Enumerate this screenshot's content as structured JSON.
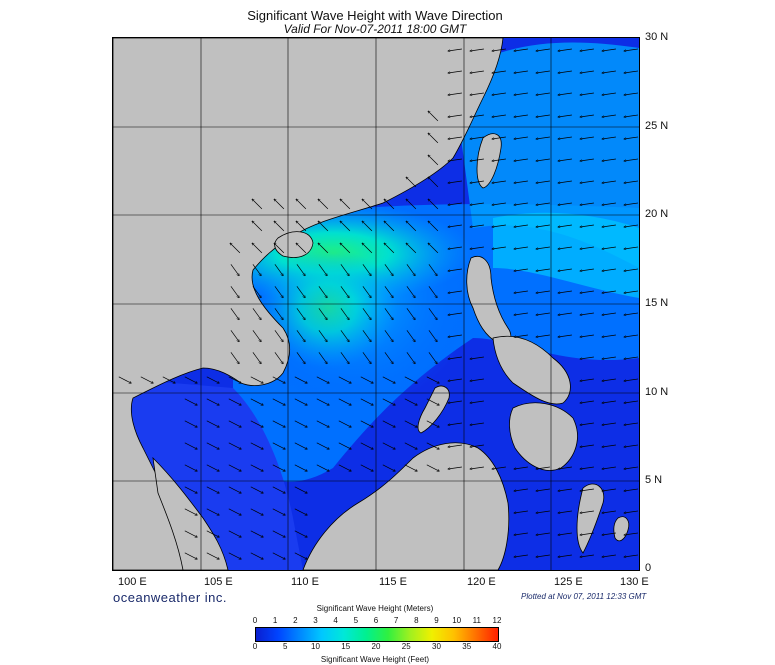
{
  "title": "Significant Wave Height with Wave Direction",
  "subtitle": "Valid For Nov-07-2011 18:00 GMT",
  "lat_labels": [
    "30 N",
    "25 N",
    "20 N",
    "15 N",
    "10 N",
    "5 N",
    "0"
  ],
  "lon_labels": [
    "100 E",
    "105 E",
    "110 E",
    "115 E",
    "120 E",
    "125 E",
    "130 E"
  ],
  "brand": "oceanweather inc.",
  "plotted": "Plotted at Nov 07, 2011 12:33 GMT",
  "legend": {
    "meters_title": "Significant Wave Height (Meters)",
    "feet_title": "Significant Wave Height (Feet)",
    "meters_ticks": [
      "0",
      "1",
      "2",
      "3",
      "4",
      "5",
      "6",
      "7",
      "8",
      "9",
      "10",
      "11",
      "12"
    ],
    "feet_ticks": [
      "0",
      "5",
      "10",
      "15",
      "20",
      "25",
      "30",
      "35",
      "40"
    ],
    "colors": [
      "#0a1fd0",
      "#0044ff",
      "#0088ff",
      "#00c8ff",
      "#00e8d8",
      "#00f090",
      "#30f040",
      "#a0f020",
      "#f0f000",
      "#ffc000",
      "#ff7000",
      "#ff2000"
    ]
  },
  "map": {
    "land_color": "#c0c0c0",
    "ocean_deep": "#0d2ee6",
    "ocean_mid": "#0070ff",
    "ocean_high": "#00d8ff",
    "ocean_peak": "#10e890"
  }
}
